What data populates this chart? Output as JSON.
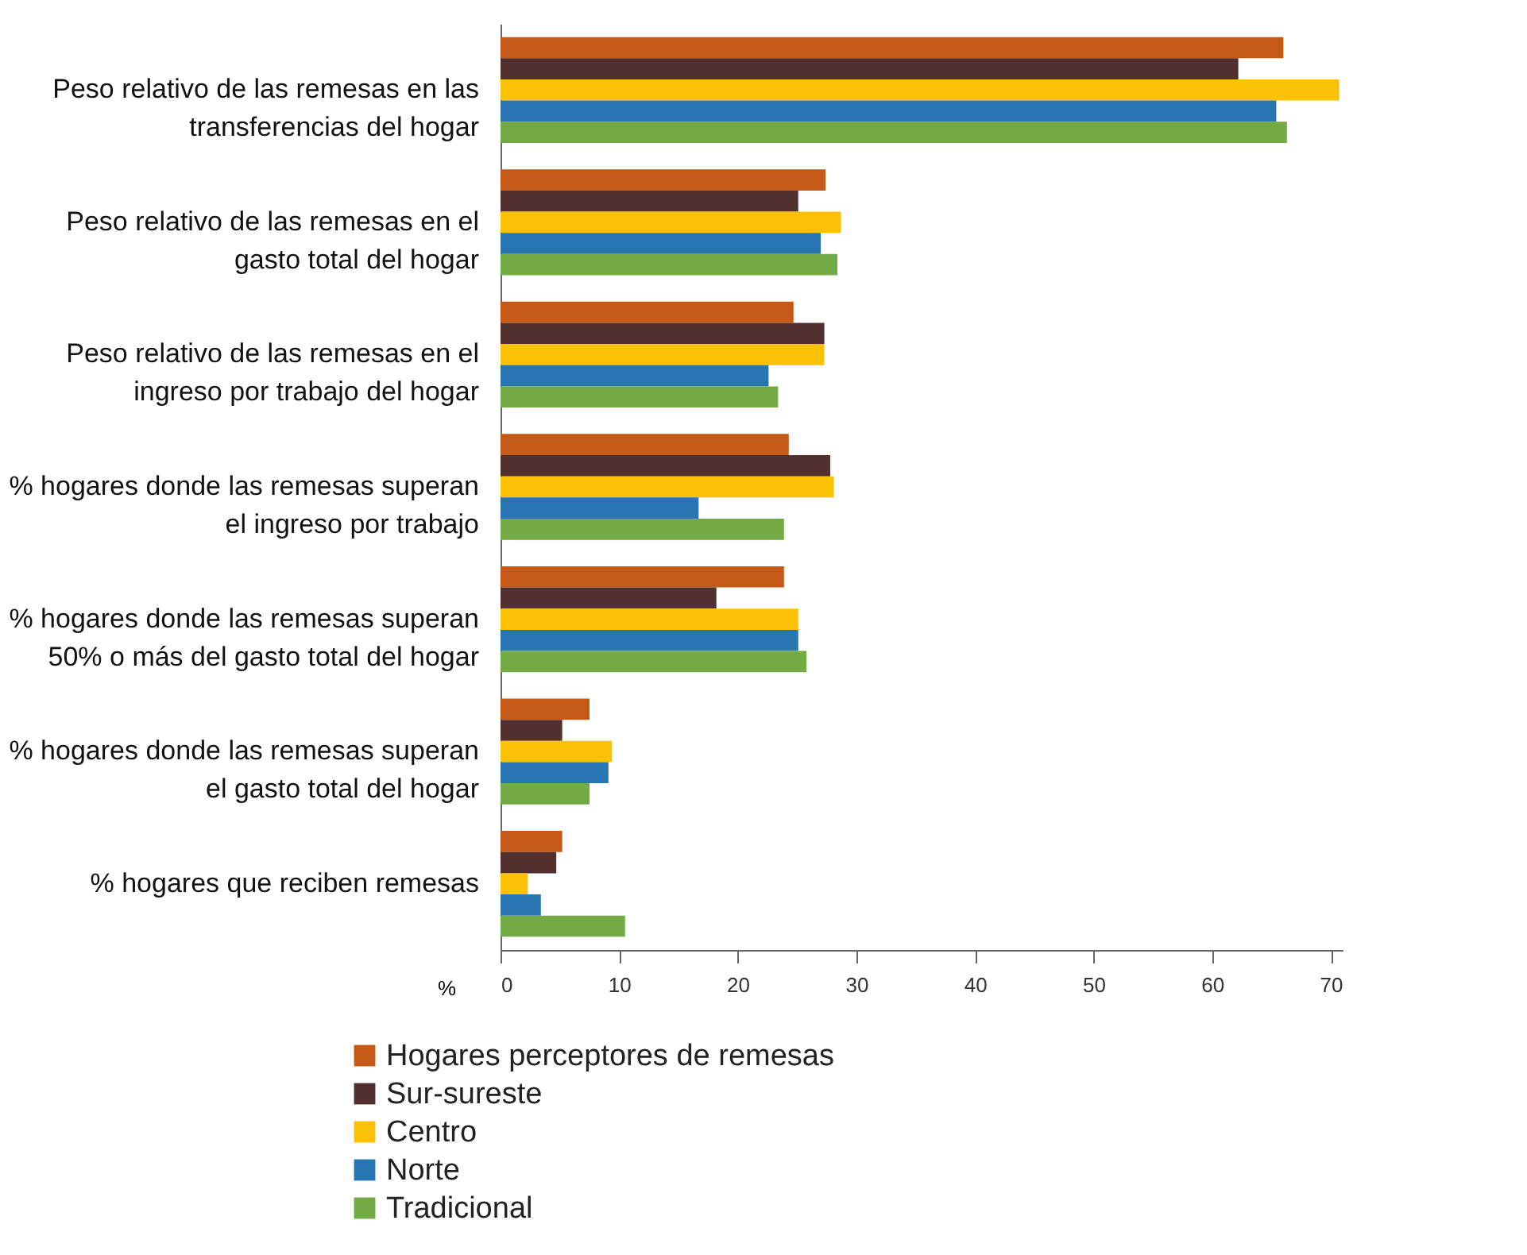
{
  "chart_data": {
    "type": "bar",
    "orientation": "horizontal",
    "xlabel": "%",
    "categories": [
      "Peso relativo de las remesas en las transferencias del hogar",
      "Peso relativo de las remesas en el gasto total del hogar",
      "Peso relativo de las remesas en el ingreso por trabajo del hogar",
      "% hogares donde las remesas superan el ingreso por trabajo",
      "% hogares donde las remesas superan 50% o más del gasto total del hogar",
      "% hogares donde las remesas superan el gasto total del hogar",
      "% hogares que reciben remesas"
    ],
    "series": [
      {
        "name": "Hogares perceptores de remesas",
        "color": "#c55a18",
        "values": [
          66,
          27.4,
          24.7,
          24.3,
          23.9,
          7.5,
          5.2
        ]
      },
      {
        "name": "Sur-sureste",
        "color": "#523030",
        "values": [
          62.2,
          25.1,
          27.3,
          27.8,
          18.2,
          5.2,
          4.7
        ]
      },
      {
        "name": "Centro",
        "color": "#fbc105",
        "values": [
          70.7,
          28.7,
          27.3,
          28.1,
          25.1,
          9.4,
          2.3
        ]
      },
      {
        "name": "Norte",
        "color": "#2776b1",
        "values": [
          65.4,
          27,
          22.6,
          16.7,
          25.1,
          9.1,
          3.4
        ]
      },
      {
        "name": "Tradicional",
        "color": "#72ab43",
        "values": [
          66.3,
          28.4,
          23.4,
          23.9,
          25.8,
          7.5,
          10.5
        ]
      }
    ],
    "xlim": [
      0,
      71
    ],
    "xticks": [
      0,
      10,
      20,
      30,
      40,
      50,
      60,
      70
    ],
    "grid": false,
    "legend": "bottom"
  }
}
